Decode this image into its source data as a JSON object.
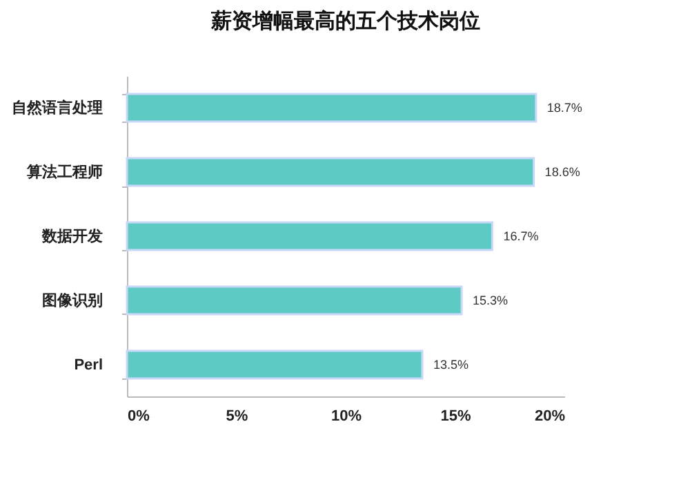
{
  "chart_data": {
    "type": "bar",
    "orientation": "horizontal",
    "title": "薪资增幅最高的五个技术岗位",
    "categories": [
      "自然语言处理",
      "算法工程师",
      "数据开发",
      "图像识别",
      "Perl"
    ],
    "values": [
      18.7,
      18.6,
      16.7,
      15.3,
      13.5
    ],
    "value_labels": [
      "18.7%",
      "18.6%",
      "16.7%",
      "15.3%",
      "13.5%"
    ],
    "color": "#5ecac4",
    "xlim": [
      0,
      20
    ],
    "xticks": [
      {
        "value": 0,
        "label": "0%"
      },
      {
        "value": 5,
        "label": "5%"
      },
      {
        "value": 10,
        "label": "10%"
      },
      {
        "value": 15,
        "label": "15%"
      },
      {
        "value": 20,
        "label": "20%"
      }
    ],
    "grid": false
  }
}
